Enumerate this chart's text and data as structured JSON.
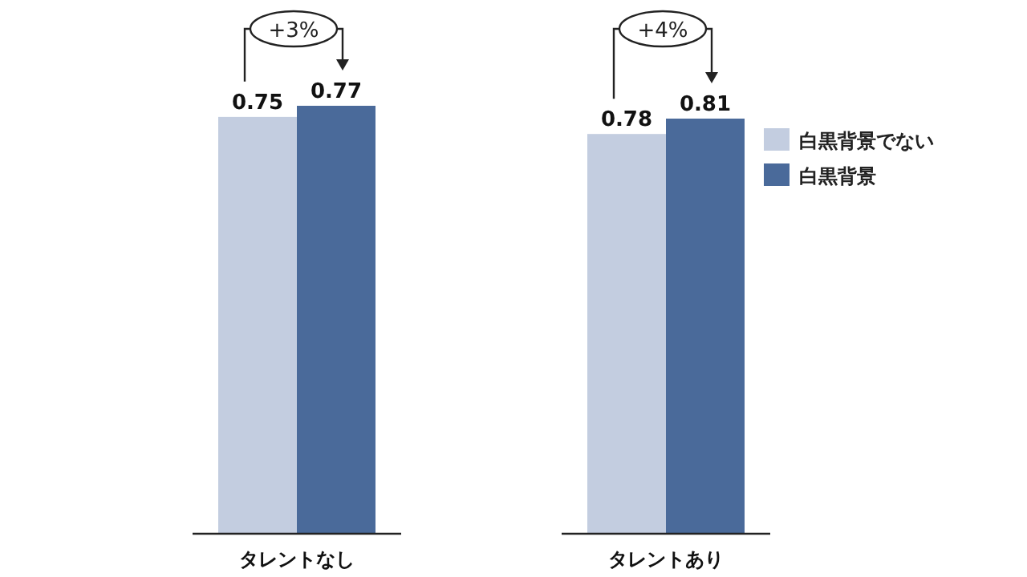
{
  "chart_data": [
    {
      "type": "bar",
      "categories": [
        "タレントなし"
      ],
      "series": [
        {
          "color": "#c3cde0",
          "values": [
            0.75
          ]
        },
        {
          "color": "#4a6a9a",
          "values": [
            0.77
          ]
        }
      ],
      "data_labels": true,
      "annotations": [
        "+3%"
      ],
      "legend": false
    },
    {
      "type": "bar",
      "categories": [
        "タレントあり"
      ],
      "series": [
        {
          "name": "白黒背景でない",
          "color": "#c3cde0",
          "values": [
            0.78
          ]
        },
        {
          "name": "白黒背景",
          "color": "#4a6a9a",
          "values": [
            0.81
          ]
        }
      ],
      "data_labels": true,
      "annotations": [
        "+4%"
      ],
      "legend": "right"
    }
  ]
}
